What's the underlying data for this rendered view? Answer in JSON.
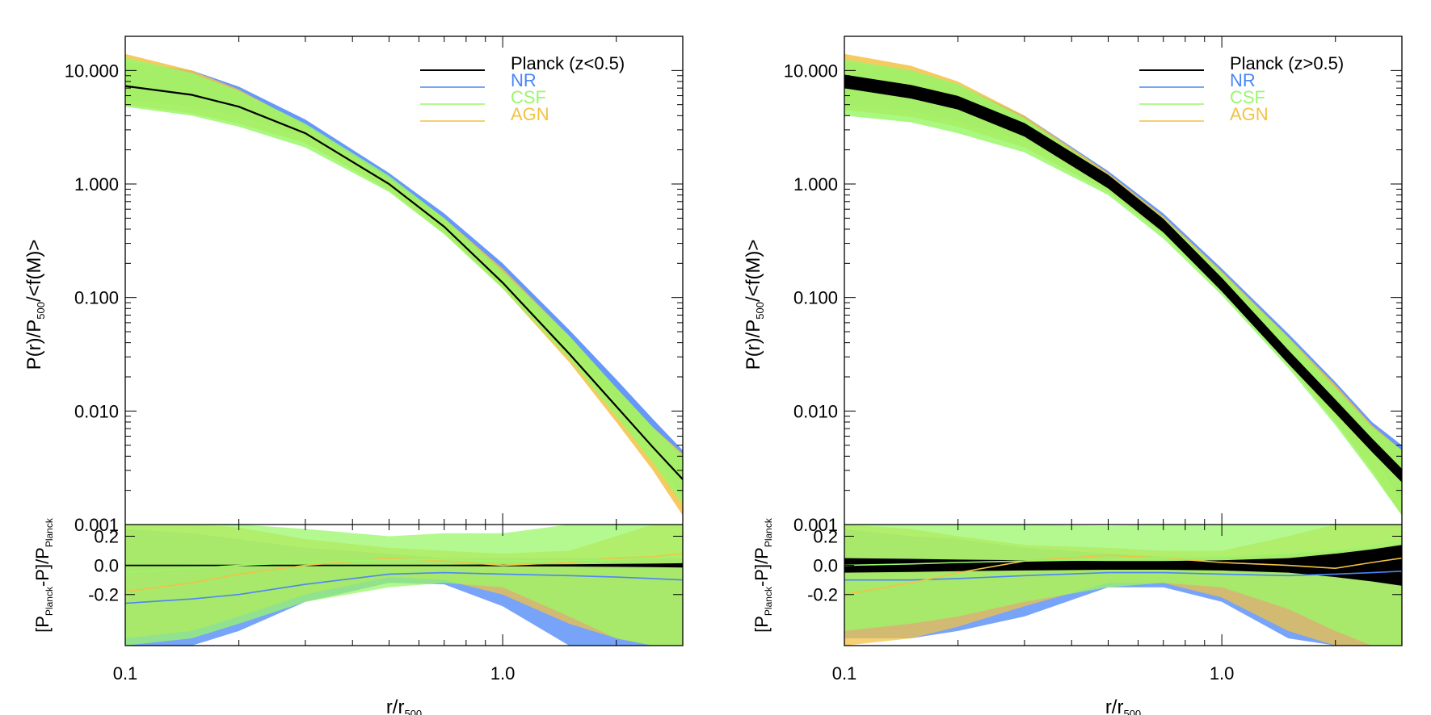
{
  "figure": {
    "description_free": true
  },
  "chart_data": [
    {
      "type": "area",
      "title": "",
      "xlabel": "r/r",
      "xlabel_sub": "500",
      "ylabel": {
        "a": "P(r)/P",
        "sub": "500",
        "b": "/<f(M)>"
      },
      "x_scale": "log",
      "xlim": [
        0.1,
        3.0
      ],
      "x_ticks": [
        {
          "v": 0.1,
          "label": "0.1"
        },
        {
          "v": 1.0,
          "label": "1.0"
        }
      ],
      "main": {
        "y_scale": "log",
        "ylim": [
          0.001,
          20
        ],
        "y_ticks": [
          {
            "v": 10,
            "label": "10.000"
          },
          {
            "v": 1,
            "label": "1.000"
          },
          {
            "v": 0.1,
            "label": "0.100"
          },
          {
            "v": 0.01,
            "label": "0.010"
          },
          {
            "v": 0.001,
            "label": "0.001"
          }
        ],
        "x": [
          0.1,
          0.15,
          0.2,
          0.3,
          0.5,
          0.7,
          1.0,
          1.5,
          2.0,
          2.5,
          3.0
        ],
        "planck": [
          7.3,
          6.1,
          4.8,
          2.8,
          1.0,
          0.42,
          0.135,
          0.032,
          0.011,
          0.0048,
          0.0025
        ],
        "planck_halfwidth": 0,
        "series": [
          {
            "name": "NR",
            "color": "#4a86f7",
            "lo": [
              5.5,
              4.8,
              4.0,
              2.6,
              1.0,
              0.44,
              0.15,
              0.037,
              0.012,
              0.005,
              0.0016
            ],
            "hi": [
              12.0,
              10.0,
              7.2,
              3.7,
              1.25,
              0.55,
              0.2,
              0.052,
              0.019,
              0.0085,
              0.0045
            ]
          },
          {
            "name": "AGN",
            "color": "#f2c244",
            "lo": [
              5.0,
              4.2,
              3.4,
              2.3,
              0.88,
              0.37,
              0.12,
              0.027,
              0.008,
              0.003,
              0.0012
            ],
            "hi": [
              14.0,
              10.0,
              6.8,
              3.3,
              1.12,
              0.5,
              0.18,
              0.046,
              0.016,
              0.0072,
              0.0042
            ]
          },
          {
            "name": "CSF",
            "color": "#9af76a",
            "lo": [
              4.8,
              4.0,
              3.2,
              2.1,
              0.85,
              0.36,
              0.12,
              0.029,
              0.009,
              0.0035,
              0.0015
            ],
            "hi": [
              13.0,
              9.5,
              6.6,
              3.4,
              1.18,
              0.5,
              0.17,
              0.046,
              0.016,
              0.0072,
              0.004
            ]
          }
        ]
      },
      "residual": {
        "ylabel": {
          "a": "[P",
          "s1": "Planck",
          "b": "-P]/P",
          "s2": "Planck"
        },
        "ylim": [
          -0.55,
          0.28
        ],
        "y_ticks": [
          {
            "v": 0.2,
            "label": "0.2"
          },
          {
            "v": 0.0,
            "label": "0.0"
          },
          {
            "v": -0.2,
            "label": "-0.2"
          }
        ],
        "x": [
          0.1,
          0.15,
          0.2,
          0.3,
          0.5,
          0.7,
          1.0,
          1.5,
          2.0,
          2.5,
          3.0
        ],
        "planck_halfwidth": [
          0.005,
          0.005,
          0.005,
          0.005,
          0.005,
          0.005,
          0.006,
          0.008,
          0.01,
          0.012,
          0.015
        ],
        "series": [
          {
            "name": "NR",
            "color": "#4a86f7",
            "lo": [
              -0.55,
              -0.55,
              -0.45,
              -0.25,
              -0.12,
              -0.13,
              -0.28,
              -0.55,
              -0.55,
              -0.55,
              -0.55
            ],
            "hi": [
              0.25,
              0.22,
              0.18,
              0.12,
              0.08,
              0.05,
              0.05,
              0.05,
              0.05,
              0.05,
              0.05
            ],
            "mid": [
              -0.26,
              -0.23,
              -0.2,
              -0.13,
              -0.06,
              -0.05,
              -0.06,
              -0.07,
              -0.08,
              -0.09,
              -0.1
            ]
          },
          {
            "name": "AGN",
            "color": "#f2c244",
            "lo": [
              -0.5,
              -0.45,
              -0.35,
              -0.2,
              -0.08,
              -0.1,
              -0.2,
              -0.4,
              -0.5,
              -0.55,
              -0.55
            ],
            "hi": [
              0.4,
              0.32,
              0.26,
              0.18,
              0.12,
              0.1,
              0.08,
              0.1,
              0.2,
              0.3,
              0.4
            ],
            "mid": [
              -0.18,
              -0.12,
              -0.06,
              0.0,
              0.05,
              0.03,
              0.0,
              0.02,
              0.05,
              0.06,
              0.08
            ]
          },
          {
            "name": "CSF",
            "color": "#9af76a",
            "lo": [
              -0.55,
              -0.5,
              -0.4,
              -0.25,
              -0.15,
              -0.12,
              -0.15,
              -0.35,
              -0.5,
              -0.55,
              -0.55
            ],
            "hi": [
              0.3,
              0.32,
              0.3,
              0.25,
              0.2,
              0.22,
              0.22,
              0.3,
              0.4,
              0.5,
              0.55
            ],
            "mid": [
              -0.05,
              -0.02,
              0.0,
              0.02,
              0.04,
              0.04,
              0.03,
              0.03,
              0.04,
              0.05,
              0.06
            ]
          }
        ]
      },
      "legend": {
        "position": "top-right",
        "entries": [
          {
            "label": "Planck (z<0.5)",
            "color": "#000000"
          },
          {
            "label": "NR",
            "color": "#4a86f7"
          },
          {
            "label": "CSF",
            "color": "#9af76a"
          },
          {
            "label": "AGN",
            "color": "#f2c244"
          }
        ]
      }
    },
    {
      "type": "area",
      "title": "",
      "xlabel": "r/r",
      "xlabel_sub": "500",
      "ylabel": {
        "a": "P(r)/P",
        "sub": "500",
        "b": "/<f(M)>"
      },
      "x_scale": "log",
      "xlim": [
        0.1,
        3.0
      ],
      "x_ticks": [
        {
          "v": 0.1,
          "label": "0.1"
        },
        {
          "v": 1.0,
          "label": "1.0"
        }
      ],
      "main": {
        "y_scale": "log",
        "ylim": [
          0.001,
          20
        ],
        "y_ticks": [
          {
            "v": 10,
            "label": "10.000"
          },
          {
            "v": 1,
            "label": "1.000"
          },
          {
            "v": 0.1,
            "label": "0.100"
          },
          {
            "v": 0.01,
            "label": "0.010"
          },
          {
            "v": 0.001,
            "label": "0.001"
          }
        ],
        "x": [
          0.1,
          0.15,
          0.2,
          0.3,
          0.5,
          0.7,
          1.0,
          1.5,
          2.0,
          2.5,
          3.0
        ],
        "planck": [
          8.0,
          6.5,
          5.2,
          3.0,
          1.05,
          0.43,
          0.13,
          0.03,
          0.011,
          0.005,
          0.0027
        ],
        "planck_halfwidth": 0.06,
        "series": [
          {
            "name": "NR",
            "color": "#4a86f7",
            "lo": [
              5.0,
              4.4,
              3.6,
              2.4,
              0.95,
              0.42,
              0.14,
              0.033,
              0.011,
              0.0045,
              0.0015
            ],
            "hi": [
              12.0,
              10.0,
              7.5,
              4.0,
              1.3,
              0.55,
              0.18,
              0.048,
              0.018,
              0.008,
              0.005
            ]
          },
          {
            "name": "AGN",
            "color": "#f2c244",
            "lo": [
              4.5,
              3.9,
              3.2,
              2.1,
              0.85,
              0.36,
              0.115,
              0.026,
              0.008,
              0.003,
              0.0012
            ],
            "hi": [
              14.0,
              11.0,
              8.0,
              4.0,
              1.25,
              0.52,
              0.17,
              0.045,
              0.017,
              0.0075,
              0.0045
            ]
          },
          {
            "name": "CSF",
            "color": "#9af76a",
            "lo": [
              4.0,
              3.5,
              2.8,
              1.9,
              0.8,
              0.33,
              0.105,
              0.024,
              0.0075,
              0.0028,
              0.0012
            ],
            "hi": [
              12.5,
              10.0,
              7.6,
              3.8,
              1.2,
              0.5,
              0.165,
              0.044,
              0.016,
              0.0072,
              0.0045
            ]
          }
        ]
      },
      "residual": {
        "ylabel": {
          "a": "[P",
          "s1": "Planck",
          "b": "-P]/P",
          "s2": "Planck"
        },
        "ylim": [
          -0.55,
          0.28
        ],
        "y_ticks": [
          {
            "v": 0.2,
            "label": "0.2"
          },
          {
            "v": 0.0,
            "label": "0.0"
          },
          {
            "v": -0.2,
            "label": "-0.2"
          }
        ],
        "x": [
          0.1,
          0.15,
          0.2,
          0.3,
          0.5,
          0.7,
          1.0,
          1.5,
          2.0,
          2.5,
          3.0
        ],
        "planck_halfwidth": [
          0.05,
          0.045,
          0.04,
          0.035,
          0.03,
          0.03,
          0.035,
          0.05,
          0.08,
          0.11,
          0.14
        ],
        "series": [
          {
            "name": "NR",
            "color": "#4a86f7",
            "lo": [
              -0.5,
              -0.5,
              -0.45,
              -0.35,
              -0.15,
              -0.15,
              -0.25,
              -0.5,
              -0.55,
              -0.55,
              -0.55
            ],
            "hi": [
              0.25,
              0.2,
              0.18,
              0.12,
              0.08,
              0.06,
              0.06,
              0.08,
              0.1,
              0.12,
              0.15
            ],
            "mid": [
              -0.1,
              -0.1,
              -0.09,
              -0.07,
              -0.05,
              -0.05,
              -0.06,
              -0.07,
              -0.06,
              -0.05,
              -0.04
            ]
          },
          {
            "name": "AGN",
            "color": "#f2c244",
            "lo": [
              -0.55,
              -0.5,
              -0.42,
              -0.28,
              -0.12,
              -0.12,
              -0.22,
              -0.45,
              -0.55,
              -0.55,
              -0.55
            ],
            "hi": [
              0.3,
              0.25,
              0.2,
              0.14,
              0.12,
              0.1,
              0.1,
              0.2,
              0.3,
              0.35,
              0.4
            ],
            "mid": [
              -0.2,
              -0.12,
              -0.05,
              0.03,
              0.07,
              0.05,
              0.02,
              0.0,
              -0.02,
              0.02,
              0.05
            ]
          },
          {
            "name": "CSF",
            "color": "#9af76a",
            "lo": [
              -0.45,
              -0.4,
              -0.35,
              -0.25,
              -0.15,
              -0.12,
              -0.15,
              -0.3,
              -0.45,
              -0.55,
              -0.55
            ],
            "hi": [
              0.45,
              0.42,
              0.38,
              0.32,
              0.27,
              0.28,
              0.35,
              0.5,
              0.6,
              0.7,
              0.75
            ],
            "mid": [
              0.0,
              0.01,
              0.02,
              0.03,
              0.04,
              0.05,
              0.06,
              0.08,
              0.1,
              0.13,
              0.17
            ]
          }
        ]
      },
      "legend": {
        "position": "top-right",
        "entries": [
          {
            "label": "Planck (z>0.5)",
            "color": "#000000"
          },
          {
            "label": "NR",
            "color": "#4a86f7"
          },
          {
            "label": "CSF",
            "color": "#9af76a"
          },
          {
            "label": "AGN",
            "color": "#f2c244"
          }
        ]
      }
    }
  ]
}
